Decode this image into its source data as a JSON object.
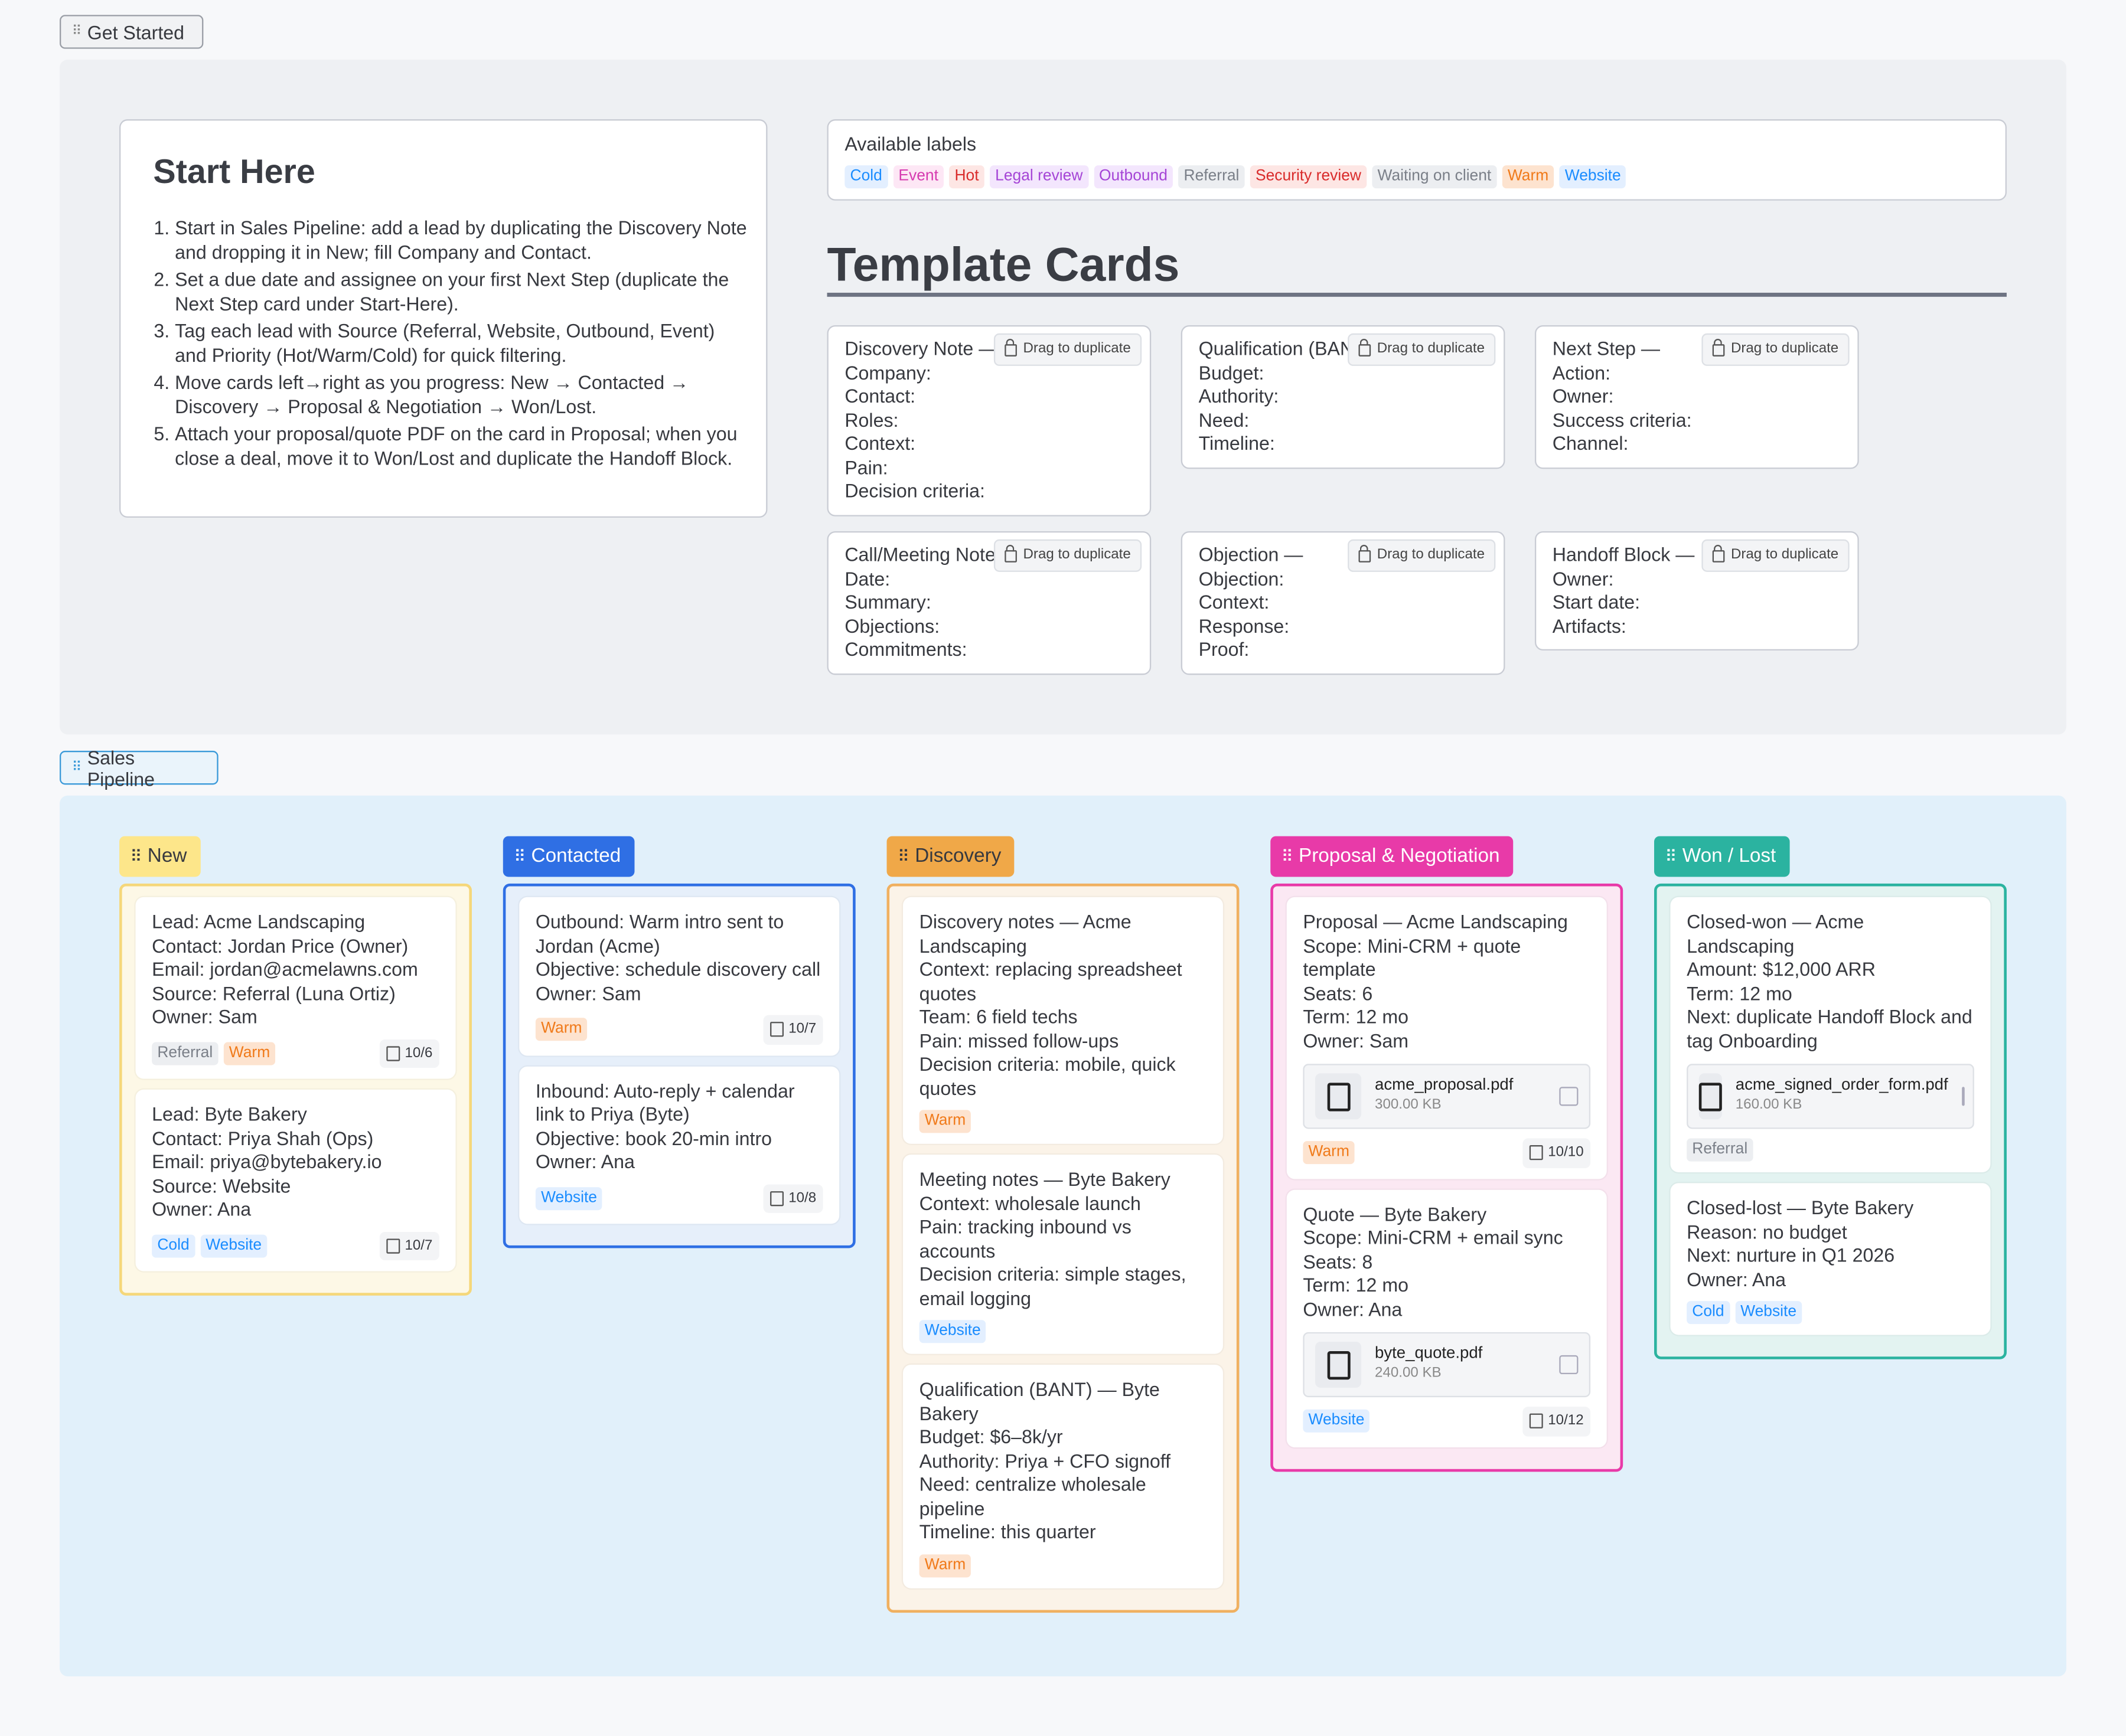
{
  "get_started_tab": "Get Started",
  "start_here": {
    "title": "Start Here",
    "steps": [
      "Start in Sales Pipeline: add a lead by duplicating the Discovery Note and dropping it in New; fill Company and Contact.",
      "Set a due date and assignee on your first Next Step (duplicate the Next Step card under Start-Here).",
      "Tag each lead with Source (Referral, Website, Outbound, Event) and Priority (Hot/Warm/Cold) for quick filtering.",
      "Move cards left→right as you progress: New → Contacted → Discovery → Proposal & Negotiation → Won/Lost.",
      "Attach your proposal/quote PDF on the card in Proposal; when you close a deal, move it to Won/Lost and duplicate the Handoff Block."
    ]
  },
  "available_labels": {
    "title": "Available labels",
    "labels": [
      "Cold",
      "Event",
      "Hot",
      "Legal review",
      "Outbound",
      "Referral",
      "Security review",
      "Waiting on client",
      "Warm",
      "Website"
    ]
  },
  "label_colors": {
    "Cold": [
      "#e3efff",
      "#1a8cff"
    ],
    "Website": [
      "#e3efff",
      "#1a8cff"
    ],
    "Event": [
      "#fde7f5",
      "#d63bb0"
    ],
    "Hot": [
      "#fde6e4",
      "#d92b2b"
    ],
    "Security review": [
      "#fde6e4",
      "#d92b2b"
    ],
    "Legal review": [
      "#f3e6fd",
      "#a545d6"
    ],
    "Outbound": [
      "#f3e6fd",
      "#a545d6"
    ],
    "Referral": [
      "#eceef1",
      "#7a7f88"
    ],
    "Waiting on client": [
      "#eceef1",
      "#7a7f88"
    ],
    "Warm": [
      "#fde3cf",
      "#f07a1a"
    ]
  },
  "template_cards": {
    "title": "Template Cards",
    "duplicate_label": "Drag to duplicate",
    "cards": [
      {
        "lines": [
          "Discovery Note —",
          "Company:",
          "Contact:",
          "Roles:",
          "Context:",
          "Pain:",
          "Decision criteria:"
        ]
      },
      {
        "lines": [
          "Qualification (BANT) —",
          "Budget:",
          "Authority:",
          "Need:",
          "Timeline:"
        ]
      },
      {
        "lines": [
          "Next Step —",
          "Action:",
          "Owner:",
          "Success criteria:",
          "Channel:"
        ]
      },
      {
        "lines": [
          "Call/Meeting Notes —",
          "Date:",
          "Summary:",
          "Objections:",
          "Commitments:"
        ]
      },
      {
        "lines": [
          "Objection —",
          "Objection:",
          "Context:",
          "Response:",
          "Proof:"
        ]
      },
      {
        "lines": [
          "Handoff Block —",
          "Owner:",
          "Start date:",
          "Artifacts:"
        ]
      }
    ]
  },
  "sales_pipeline_tab": "Sales Pipeline",
  "pipeline": {
    "columns": [
      {
        "title": "New",
        "colors": {
          "head": "#fde68a",
          "headText": "#37393f",
          "border": "#f5d77a",
          "bg": "#fdf8e6"
        },
        "cards": [
          {
            "lines": [
              "Lead: Acme Landscaping",
              "Contact: Jordan Price (Owner)",
              "Email: jordan@acmelawns.com",
              "Source: Referral (Luna Ortiz)",
              "Owner: Sam"
            ],
            "tags": [
              "Referral",
              "Warm"
            ],
            "date": "10/6"
          },
          {
            "lines": [
              "Lead: Byte Bakery",
              "Contact: Priya Shah (Ops)",
              "Email: priya@bytebakery.io",
              "Source: Website",
              "Owner: Ana"
            ],
            "tags": [
              "Cold",
              "Website"
            ],
            "date": "10/7"
          }
        ]
      },
      {
        "title": "Contacted",
        "colors": {
          "head": "#2f6fe4",
          "headText": "#ffffff",
          "border": "#2f6fe4",
          "bg": "#e6effa"
        },
        "cards": [
          {
            "lines": [
              "Outbound: Warm intro sent to Jordan (Acme)",
              "Objective: schedule discovery call",
              "Owner: Sam"
            ],
            "tags": [
              "Warm"
            ],
            "date": "10/7"
          },
          {
            "lines": [
              "Inbound: Auto-reply + calendar link to Priya (Byte)",
              "Objective: book 20-min intro",
              "Owner: Ana"
            ],
            "tags": [
              "Website"
            ],
            "date": "10/8"
          }
        ]
      },
      {
        "title": "Discovery",
        "colors": {
          "head": "#f0a848",
          "headText": "#37393f",
          "border": "#f0b060",
          "bg": "#fbf3e8"
        },
        "cards": [
          {
            "lines": [
              "Discovery notes — Acme Landscaping",
              "Context: replacing spreadsheet quotes",
              "Team: 6 field techs",
              "Pain: missed follow-ups",
              "Decision criteria: mobile, quick quotes"
            ],
            "tags": [
              "Warm"
            ]
          },
          {
            "lines": [
              "Meeting notes — Byte Bakery",
              "Context: wholesale launch",
              "Pain: tracking inbound vs accounts",
              "Decision criteria: simple stages, email logging"
            ],
            "tags": [
              "Website"
            ]
          },
          {
            "lines": [
              "Qualification (BANT) — Byte Bakery",
              "Budget: $6–8k/yr",
              "Authority: Priya + CFO signoff",
              "Need: centralize wholesale pipeline",
              "Timeline: this quarter"
            ],
            "tags": [
              "Warm"
            ]
          }
        ]
      },
      {
        "title": "Proposal & Negotiation",
        "colors": {
          "head": "#e83aa8",
          "headText": "#ffffff",
          "border": "#e83aa8",
          "bg": "#fbe8f3"
        },
        "cards": [
          {
            "lines": [
              "Proposal — Acme Landscaping",
              "Scope: Mini-CRM + quote template",
              "Seats: 6",
              "Term: 12 mo",
              "Owner: Sam"
            ],
            "file": {
              "name": "acme_proposal.pdf",
              "size": "300.00 KB"
            },
            "tags": [
              "Warm"
            ],
            "date": "10/10"
          },
          {
            "lines": [
              "Quote — Byte Bakery",
              "Scope: Mini-CRM + email sync",
              "Seats: 8",
              "Term: 12 mo",
              "Owner: Ana"
            ],
            "file": {
              "name": "byte_quote.pdf",
              "size": "240.00 KB"
            },
            "tags": [
              "Website"
            ],
            "date": "10/12"
          }
        ]
      },
      {
        "title": "Won / Lost",
        "colors": {
          "head": "#2bb3a0",
          "headText": "#ffffff",
          "border": "#2bb3a0",
          "bg": "#e3f3f1"
        },
        "cards": [
          {
            "lines": [
              "Closed-won — Acme Landscaping",
              "Amount: $12,000 ARR",
              "Term: 12 mo",
              "Next: duplicate Handoff Block and tag Onboarding"
            ],
            "file": {
              "name": "acme_signed_order_form.pdf",
              "size": "160.00 KB"
            },
            "tags": [
              "Referral"
            ]
          },
          {
            "lines": [
              "Closed-lost — Byte Bakery",
              "Reason: no budget",
              "Next: nurture in Q1 2026",
              "Owner: Ana"
            ],
            "tags": [
              "Cold",
              "Website"
            ]
          }
        ]
      }
    ]
  }
}
